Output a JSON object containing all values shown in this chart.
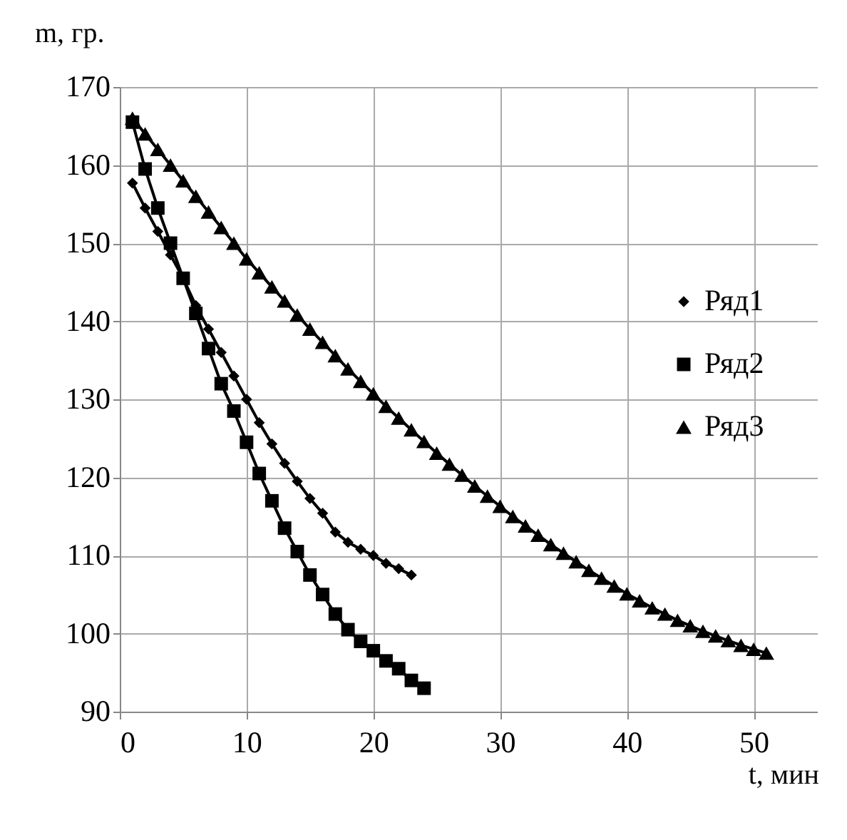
{
  "chart_data": {
    "type": "line",
    "xlabel": "t, мин",
    "ylabel": "m, гр.",
    "xlim": [
      0,
      55
    ],
    "xticks": [
      0,
      10,
      20,
      30,
      40,
      50
    ],
    "ylim": [
      90,
      170
    ],
    "yticks": [
      90,
      100,
      110,
      120,
      130,
      140,
      150,
      160,
      170
    ],
    "grid": true,
    "legend": "right",
    "line_style": "solid",
    "series": [
      {
        "name": "Ряд1",
        "color": "#000000",
        "marker": "diamond",
        "x": [
          1,
          2,
          3,
          4,
          5,
          6,
          7,
          8,
          9,
          10,
          11,
          12,
          13,
          14,
          15,
          16,
          17,
          18,
          19,
          20,
          21,
          22,
          23
        ],
        "values": [
          157.7,
          154.5,
          151.5,
          148.5,
          145.5,
          142,
          139,
          136,
          133,
          130,
          127,
          124.3,
          121.8,
          119.5,
          117.3,
          115.4,
          113,
          111.7,
          110.8,
          110,
          109,
          108.3,
          107.5
        ]
      },
      {
        "name": "Ряд2",
        "color": "#000000",
        "marker": "square",
        "x": [
          1,
          2,
          3,
          4,
          5,
          6,
          7,
          8,
          9,
          10,
          11,
          12,
          13,
          14,
          15,
          16,
          17,
          18,
          19,
          20,
          21,
          22,
          23,
          24
        ],
        "values": [
          165.5,
          159.5,
          154.5,
          150,
          145.5,
          141,
          136.5,
          132,
          128.5,
          124.5,
          120.5,
          117,
          113.5,
          110.5,
          107.5,
          105,
          102.5,
          100.5,
          99,
          97.8,
          96.5,
          95.5,
          94,
          93
        ]
      },
      {
        "name": "Ряд3",
        "color": "#000000",
        "marker": "triangle",
        "x": [
          1,
          2,
          3,
          4,
          5,
          6,
          7,
          8,
          9,
          10,
          11,
          12,
          13,
          14,
          15,
          16,
          17,
          18,
          19,
          20,
          21,
          22,
          23,
          24,
          25,
          26,
          27,
          28,
          29,
          30,
          31,
          32,
          33,
          34,
          35,
          36,
          37,
          38,
          39,
          40,
          41,
          42,
          43,
          44,
          45,
          46,
          47,
          48,
          49,
          50,
          51
        ],
        "values": [
          166,
          164,
          162,
          160,
          158,
          156,
          154,
          152,
          150,
          148,
          146.2,
          144.4,
          142.6,
          140.8,
          139,
          137.3,
          135.6,
          133.9,
          132.3,
          130.7,
          129.1,
          127.6,
          126.1,
          124.6,
          123.1,
          121.7,
          120.3,
          118.9,
          117.6,
          116.3,
          115,
          113.8,
          112.6,
          111.4,
          110.3,
          109.2,
          108.1,
          107.1,
          106.1,
          105.1,
          104.2,
          103.3,
          102.5,
          101.7,
          101,
          100.3,
          99.7,
          99.1,
          98.5,
          98,
          97.5
        ]
      }
    ]
  }
}
